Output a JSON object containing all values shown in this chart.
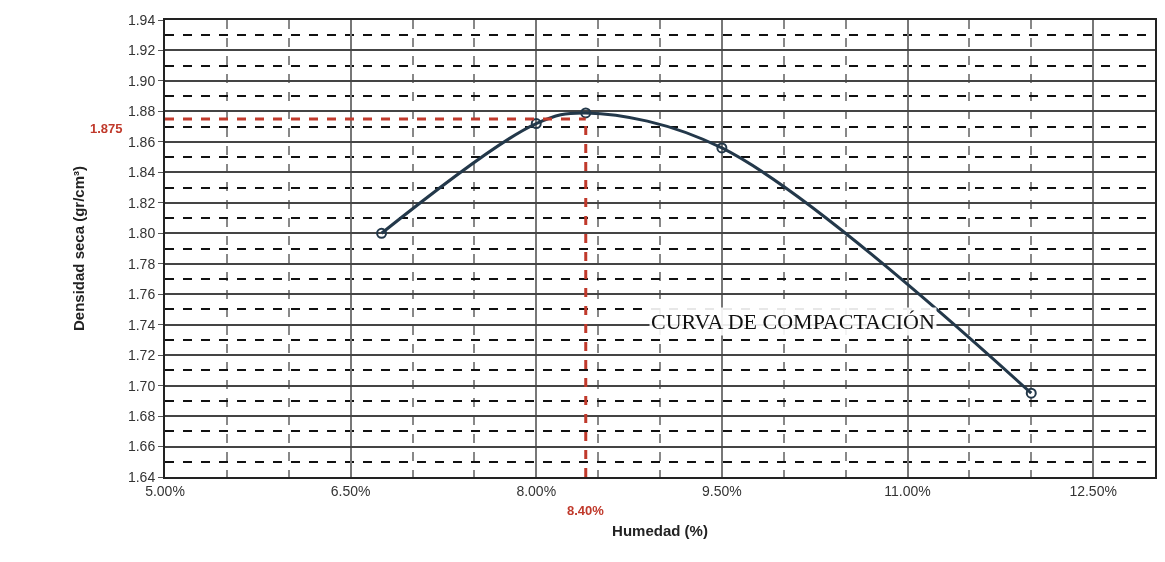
{
  "chart_data": {
    "type": "line",
    "xlabel": "Humedad (%)",
    "ylabel": "Densidad seca (gr/cm³)",
    "x": [
      6.75,
      8.0,
      8.4,
      9.5,
      12.0
    ],
    "series": [
      {
        "color": "#23384a",
        "values": [
          1.8,
          1.872,
          1.879,
          1.856,
          1.695
        ]
      }
    ],
    "xlim": [
      5,
      13
    ],
    "xticks": [
      {
        "value": 5,
        "label": "5.00%"
      },
      {
        "value": 6.5,
        "label": "6.50%"
      },
      {
        "value": 8,
        "label": "8.00%"
      },
      {
        "value": 9.5,
        "label": "9.50%"
      },
      {
        "value": 11,
        "label": "11.00%"
      },
      {
        "value": 12.5,
        "label": "12.50%"
      }
    ],
    "ylim": [
      1.64,
      1.94
    ],
    "yticks": [
      {
        "value": 1.64,
        "label": "1.64"
      },
      {
        "value": 1.66,
        "label": "1.66"
      },
      {
        "value": 1.68,
        "label": "1.68"
      },
      {
        "value": 1.7,
        "label": "1.70"
      },
      {
        "value": 1.72,
        "label": "1.72"
      },
      {
        "value": 1.74,
        "label": "1.74"
      },
      {
        "value": 1.76,
        "label": "1.76"
      },
      {
        "value": 1.78,
        "label": "1.78"
      },
      {
        "value": 1.8,
        "label": "1.80"
      },
      {
        "value": 1.82,
        "label": "1.82"
      },
      {
        "value": 1.84,
        "label": "1.84"
      },
      {
        "value": 1.86,
        "label": "1.86"
      },
      {
        "value": 1.88,
        "label": "1.88"
      },
      {
        "value": 1.9,
        "label": "1.90"
      },
      {
        "value": 1.92,
        "label": "1.92"
      },
      {
        "value": 1.94,
        "label": "1.94"
      }
    ],
    "ref_lines": [
      {
        "axis": "y",
        "value": 1.875,
        "label": "1.875",
        "color": "#c0392b",
        "line_style": "dashed"
      },
      {
        "axis": "x",
        "value": 8.4,
        "label": "8.40%",
        "color": "#c0392b",
        "line_style": "dashed"
      }
    ],
    "annotations": [
      "CURVA DE COMPACTACIÓN"
    ],
    "grid": true,
    "marker": "circle",
    "line_style": "solid"
  }
}
